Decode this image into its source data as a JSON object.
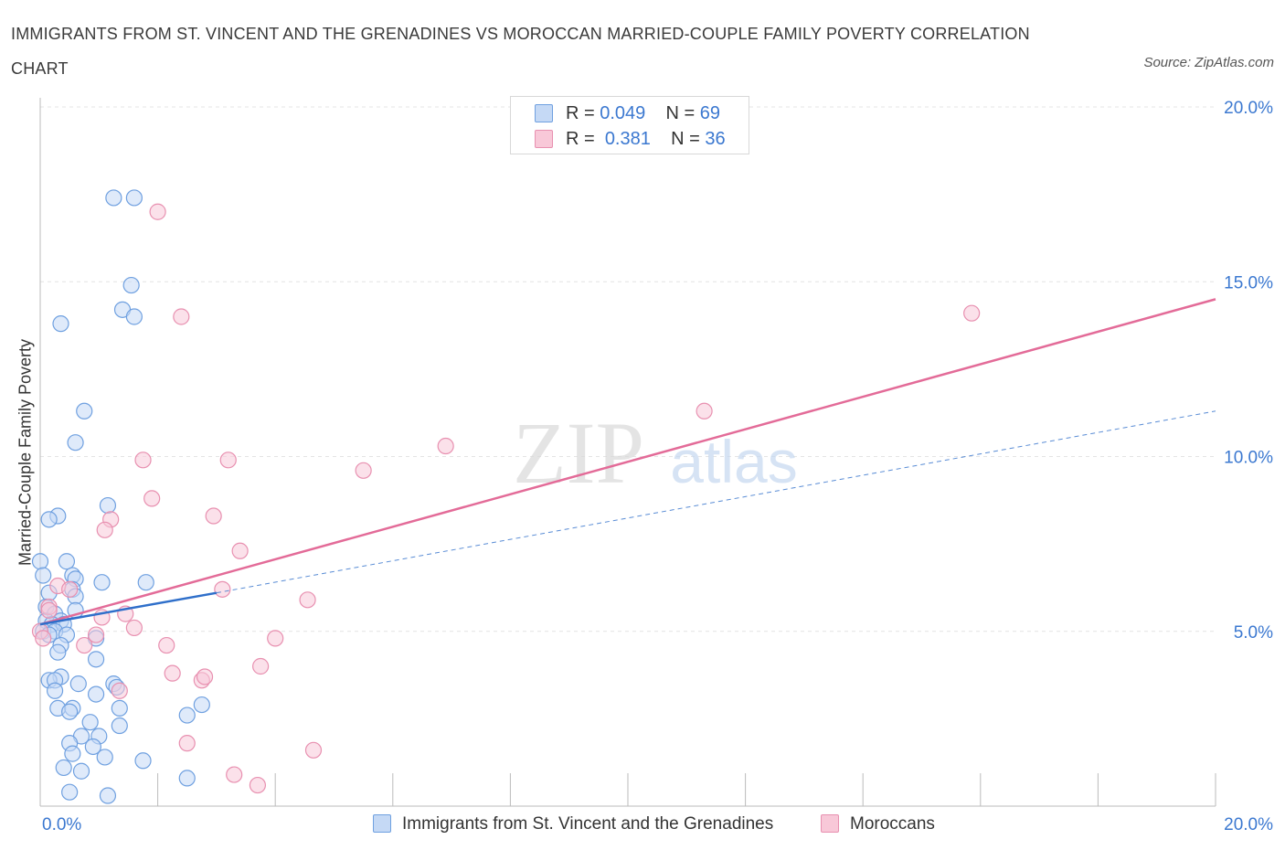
{
  "title": "IMMIGRANTS FROM ST. VINCENT AND THE GRENADINES VS MOROCCAN MARRIED-COUPLE FAMILY POVERTY CORRELATION CHART",
  "source": "Source: ZipAtlas.com",
  "watermark": {
    "zip": "ZIP",
    "atlas": "atlas"
  },
  "legend": {
    "r_label": "R =",
    "n_label": "N =",
    "series1": {
      "r": "0.049",
      "n": "69",
      "color": "#6fa0e0",
      "fill": "#c5d9f5"
    },
    "series2": {
      "r": "0.381",
      "n": "36",
      "color": "#e890b0",
      "fill": "#f8c8d8"
    }
  },
  "colors": {
    "blue_line": "#2f6fca",
    "pink_line": "#e36b98",
    "accent": "#3b78d0"
  },
  "chart_data": {
    "type": "scatter",
    "title": "IMMIGRANTS FROM ST. VINCENT AND THE GRENADINES VS MOROCCAN MARRIED-COUPLE FAMILY POVERTY CORRELATION CHART",
    "xlabel": "",
    "ylabel": "Married-Couple Family Poverty",
    "xlim": [
      0,
      20
    ],
    "ylim": [
      0,
      20
    ],
    "x_tick_labels": [
      "0.0%",
      "20.0%"
    ],
    "y_ticks": [
      5,
      10,
      15,
      20
    ],
    "y_tick_labels": [
      "5.0%",
      "10.0%",
      "15.0%",
      "20.0%"
    ],
    "grid": true,
    "legend_position": "bottom-center",
    "series": [
      {
        "name": "Immigrants from St. Vincent and the Grenadines",
        "color": "#6fa0e0",
        "fill": "#c5d9f5",
        "r": 0.049,
        "n": 69,
        "trend": {
          "x": [
            0,
            3.0
          ],
          "y": [
            5.2,
            6.1
          ],
          "style": "solid"
        },
        "trend_extension": {
          "x": [
            3.0,
            20.0
          ],
          "y": [
            6.1,
            11.3
          ],
          "style": "dashed"
        },
        "points": [
          [
            1.25,
            17.4
          ],
          [
            1.6,
            17.4
          ],
          [
            1.55,
            14.9
          ],
          [
            1.4,
            14.2
          ],
          [
            1.6,
            14.0
          ],
          [
            0.35,
            13.8
          ],
          [
            0.75,
            11.3
          ],
          [
            0.6,
            10.4
          ],
          [
            1.15,
            8.6
          ],
          [
            0.3,
            8.3
          ],
          [
            0.15,
            8.2
          ],
          [
            0.0,
            7.0
          ],
          [
            0.45,
            7.0
          ],
          [
            0.05,
            6.6
          ],
          [
            0.55,
            6.6
          ],
          [
            0.6,
            6.5
          ],
          [
            1.05,
            6.4
          ],
          [
            1.8,
            6.4
          ],
          [
            0.55,
            6.2
          ],
          [
            0.15,
            6.1
          ],
          [
            0.6,
            6.0
          ],
          [
            0.1,
            5.7
          ],
          [
            0.6,
            5.6
          ],
          [
            0.25,
            5.5
          ],
          [
            0.1,
            5.3
          ],
          [
            0.35,
            5.3
          ],
          [
            0.2,
            5.2
          ],
          [
            0.4,
            5.2
          ],
          [
            0.05,
            5.0
          ],
          [
            0.25,
            5.0
          ],
          [
            0.15,
            4.9
          ],
          [
            0.45,
            4.9
          ],
          [
            0.95,
            4.8
          ],
          [
            0.35,
            4.6
          ],
          [
            0.3,
            4.4
          ],
          [
            0.95,
            4.2
          ],
          [
            0.35,
            3.7
          ],
          [
            0.15,
            3.6
          ],
          [
            0.25,
            3.6
          ],
          [
            0.65,
            3.5
          ],
          [
            1.25,
            3.5
          ],
          [
            1.3,
            3.4
          ],
          [
            0.25,
            3.3
          ],
          [
            0.95,
            3.2
          ],
          [
            2.75,
            2.9
          ],
          [
            0.3,
            2.8
          ],
          [
            0.55,
            2.8
          ],
          [
            0.5,
            2.7
          ],
          [
            1.35,
            2.8
          ],
          [
            2.5,
            2.6
          ],
          [
            0.85,
            2.4
          ],
          [
            1.35,
            2.3
          ],
          [
            0.7,
            2.0
          ],
          [
            1.0,
            2.0
          ],
          [
            0.5,
            1.8
          ],
          [
            0.9,
            1.7
          ],
          [
            0.55,
            1.5
          ],
          [
            1.1,
            1.4
          ],
          [
            1.75,
            1.3
          ],
          [
            0.4,
            1.1
          ],
          [
            0.7,
            1.0
          ],
          [
            2.5,
            0.8
          ],
          [
            0.5,
            0.4
          ],
          [
            1.15,
            0.3
          ]
        ]
      },
      {
        "name": "Moroccans",
        "color": "#e890b0",
        "fill": "#f8c8d8",
        "r": 0.381,
        "n": 36,
        "trend": {
          "x": [
            0,
            20.0
          ],
          "y": [
            5.2,
            14.5
          ],
          "style": "solid"
        },
        "points": [
          [
            2.0,
            17.0
          ],
          [
            2.4,
            14.0
          ],
          [
            15.85,
            14.1
          ],
          [
            11.3,
            11.3
          ],
          [
            6.9,
            10.3
          ],
          [
            1.75,
            9.9
          ],
          [
            3.2,
            9.9
          ],
          [
            5.5,
            9.6
          ],
          [
            1.9,
            8.8
          ],
          [
            2.95,
            8.3
          ],
          [
            1.2,
            8.2
          ],
          [
            1.1,
            7.9
          ],
          [
            3.4,
            7.3
          ],
          [
            0.3,
            6.3
          ],
          [
            0.5,
            6.2
          ],
          [
            3.1,
            6.2
          ],
          [
            4.55,
            5.9
          ],
          [
            0.15,
            5.7
          ],
          [
            0.15,
            5.6
          ],
          [
            1.45,
            5.5
          ],
          [
            1.05,
            5.4
          ],
          [
            1.6,
            5.1
          ],
          [
            0.0,
            5.0
          ],
          [
            0.95,
            4.9
          ],
          [
            4.0,
            4.8
          ],
          [
            0.75,
            4.6
          ],
          [
            2.15,
            4.6
          ],
          [
            0.05,
            4.8
          ],
          [
            3.75,
            4.0
          ],
          [
            2.25,
            3.8
          ],
          [
            2.75,
            3.6
          ],
          [
            2.8,
            3.7
          ],
          [
            1.35,
            3.3
          ],
          [
            2.5,
            1.8
          ],
          [
            4.65,
            1.6
          ],
          [
            3.3,
            0.9
          ],
          [
            3.7,
            0.6
          ]
        ]
      }
    ]
  }
}
